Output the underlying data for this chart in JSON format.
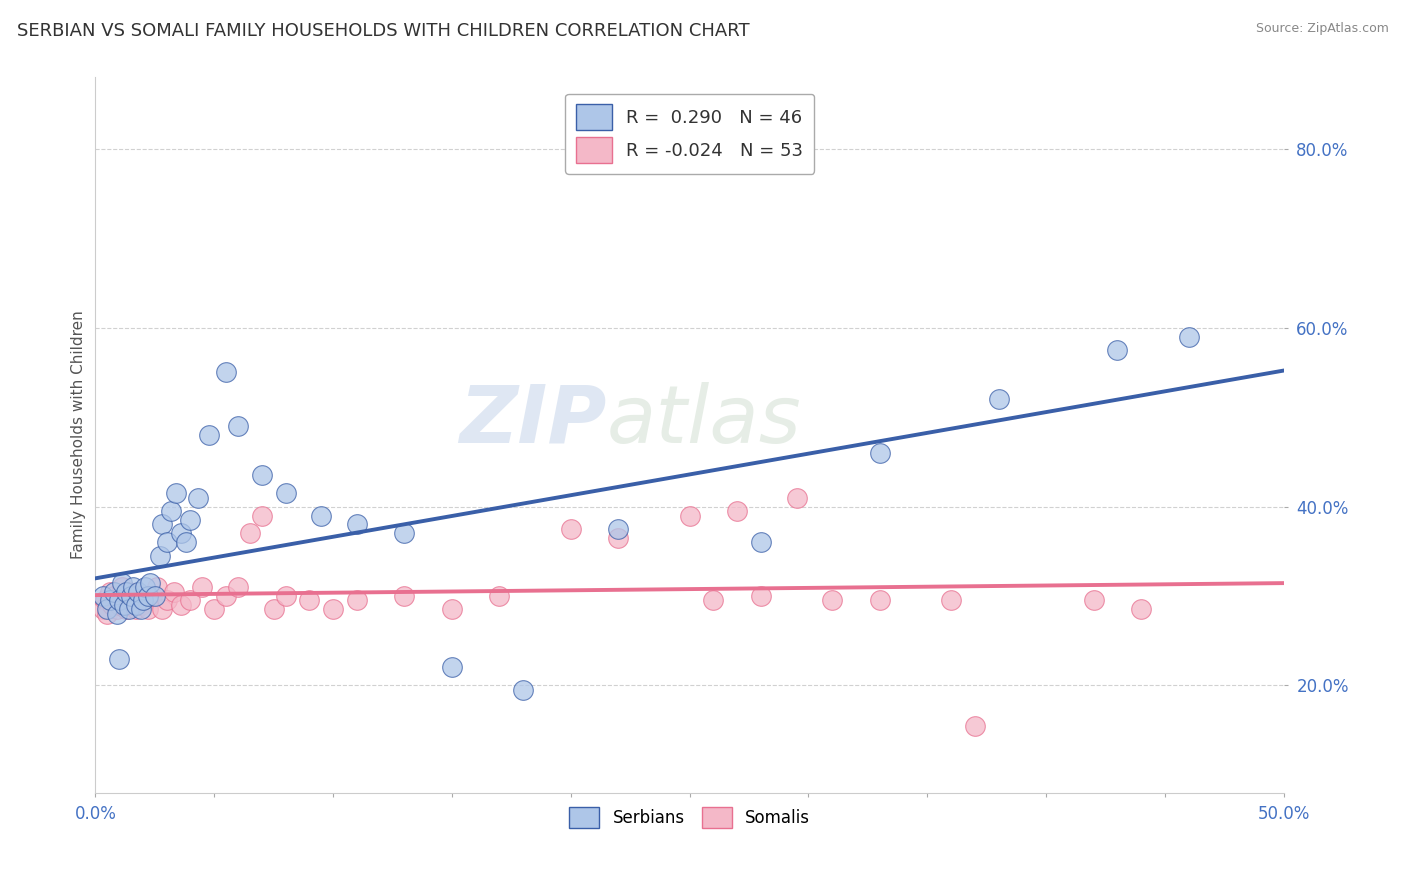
{
  "title": "SERBIAN VS SOMALI FAMILY HOUSEHOLDS WITH CHILDREN CORRELATION CHART",
  "source": "Source: ZipAtlas.com",
  "ylabel": "Family Households with Children",
  "xlim": [
    0.0,
    0.5
  ],
  "ylim": [
    0.08,
    0.88
  ],
  "xticks": [
    0.0,
    0.05,
    0.1,
    0.15,
    0.2,
    0.25,
    0.3,
    0.35,
    0.4,
    0.45,
    0.5
  ],
  "xticklabels": [
    "0.0%",
    "",
    "",
    "",
    "",
    "",
    "",
    "",
    "",
    "",
    "50.0%"
  ],
  "yticks": [
    0.2,
    0.4,
    0.6,
    0.8
  ],
  "yticklabels": [
    "20.0%",
    "40.0%",
    "60.0%",
    "80.0%"
  ],
  "legend1_label": "R =  0.290   N = 46",
  "legend2_label": "R = -0.024   N = 53",
  "legend_bottom_labels": [
    "Serbians",
    "Somalis"
  ],
  "serbian_color": "#aec6e8",
  "somali_color": "#f4b8c8",
  "serbian_line_color": "#3a5fa8",
  "somali_line_color": "#e87090",
  "watermark_zip": "ZIP",
  "watermark_atlas": "atlas",
  "title_fontsize": 13,
  "axis_fontsize": 11,
  "tick_fontsize": 12,
  "bg_color": "#ffffff",
  "grid_color": "#cccccc",
  "serbian_scatter_x": [
    0.003,
    0.005,
    0.006,
    0.008,
    0.009,
    0.01,
    0.011,
    0.012,
    0.013,
    0.014,
    0.015,
    0.016,
    0.017,
    0.018,
    0.019,
    0.02,
    0.021,
    0.022,
    0.023,
    0.025,
    0.027,
    0.028,
    0.03,
    0.032,
    0.034,
    0.036,
    0.038,
    0.04,
    0.043,
    0.048,
    0.055,
    0.06,
    0.07,
    0.08,
    0.095,
    0.11,
    0.13,
    0.15,
    0.18,
    0.22,
    0.28,
    0.33,
    0.38,
    0.43,
    0.46,
    0.01
  ],
  "serbian_scatter_y": [
    0.3,
    0.285,
    0.295,
    0.305,
    0.28,
    0.295,
    0.315,
    0.29,
    0.305,
    0.285,
    0.3,
    0.31,
    0.29,
    0.305,
    0.285,
    0.295,
    0.31,
    0.3,
    0.315,
    0.3,
    0.345,
    0.38,
    0.36,
    0.395,
    0.415,
    0.37,
    0.36,
    0.385,
    0.41,
    0.48,
    0.55,
    0.49,
    0.435,
    0.415,
    0.39,
    0.38,
    0.37,
    0.22,
    0.195,
    0.375,
    0.36,
    0.46,
    0.52,
    0.575,
    0.59,
    0.23
  ],
  "somali_scatter_x": [
    0.003,
    0.004,
    0.005,
    0.006,
    0.007,
    0.008,
    0.009,
    0.01,
    0.011,
    0.012,
    0.013,
    0.014,
    0.015,
    0.016,
    0.017,
    0.018,
    0.019,
    0.02,
    0.022,
    0.024,
    0.026,
    0.028,
    0.03,
    0.033,
    0.036,
    0.04,
    0.045,
    0.05,
    0.055,
    0.06,
    0.065,
    0.07,
    0.075,
    0.08,
    0.09,
    0.1,
    0.11,
    0.13,
    0.15,
    0.17,
    0.2,
    0.22,
    0.25,
    0.26,
    0.27,
    0.28,
    0.295,
    0.31,
    0.33,
    0.36,
    0.37,
    0.42,
    0.44
  ],
  "somali_scatter_y": [
    0.285,
    0.295,
    0.28,
    0.305,
    0.29,
    0.3,
    0.285,
    0.29,
    0.31,
    0.295,
    0.285,
    0.305,
    0.29,
    0.295,
    0.285,
    0.3,
    0.29,
    0.295,
    0.285,
    0.3,
    0.31,
    0.285,
    0.295,
    0.305,
    0.29,
    0.295,
    0.31,
    0.285,
    0.3,
    0.31,
    0.37,
    0.39,
    0.285,
    0.3,
    0.295,
    0.285,
    0.295,
    0.3,
    0.285,
    0.3,
    0.375,
    0.365,
    0.39,
    0.295,
    0.395,
    0.3,
    0.41,
    0.295,
    0.295,
    0.295,
    0.155,
    0.295,
    0.285
  ]
}
